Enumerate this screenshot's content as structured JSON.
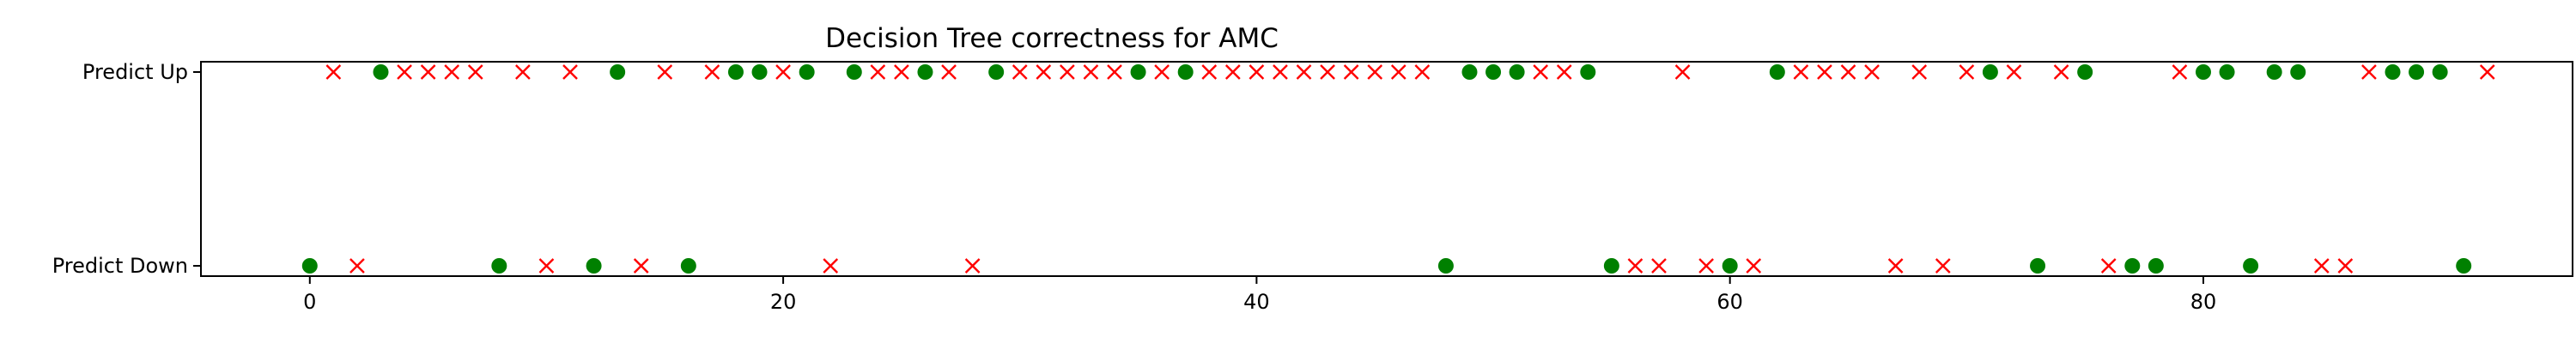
{
  "chart_data": {
    "type": "scatter",
    "title": "Decision Tree correctness for AMC",
    "xlabel": "",
    "ylabel": "",
    "xlim": [
      -4.6,
      95.6
    ],
    "x_ticks": [
      0,
      20,
      40,
      60,
      80
    ],
    "y_categories": [
      "Predict Down",
      "Predict Up"
    ],
    "grid": false,
    "legend": "none",
    "colors": {
      "correct": "#008000",
      "incorrect": "#ff0000"
    },
    "series": [
      {
        "marker": "circle",
        "color": "correct",
        "points": [
          [
            0,
            0
          ],
          [
            3,
            1
          ],
          [
            8,
            0
          ],
          [
            12,
            0
          ],
          [
            13,
            1
          ],
          [
            16,
            0
          ],
          [
            18,
            1
          ],
          [
            19,
            1
          ],
          [
            21,
            1
          ],
          [
            23,
            1
          ],
          [
            26,
            1
          ],
          [
            29,
            1
          ],
          [
            35,
            1
          ],
          [
            37,
            1
          ],
          [
            48,
            0
          ],
          [
            49,
            1
          ],
          [
            50,
            1
          ],
          [
            51,
            1
          ],
          [
            54,
            1
          ],
          [
            55,
            0
          ],
          [
            60,
            0
          ],
          [
            62,
            1
          ],
          [
            71,
            1
          ],
          [
            73,
            0
          ],
          [
            75,
            1
          ],
          [
            77,
            0
          ],
          [
            78,
            0
          ],
          [
            80,
            1
          ],
          [
            81,
            1
          ],
          [
            82,
            0
          ],
          [
            83,
            1
          ],
          [
            84,
            1
          ],
          [
            88,
            1
          ],
          [
            89,
            1
          ],
          [
            90,
            1
          ],
          [
            91,
            0
          ]
        ]
      },
      {
        "marker": "x",
        "color": "incorrect",
        "points": [
          [
            1,
            1
          ],
          [
            2,
            0
          ],
          [
            4,
            1
          ],
          [
            5,
            1
          ],
          [
            6,
            1
          ],
          [
            7,
            1
          ],
          [
            9,
            1
          ],
          [
            10,
            0
          ],
          [
            11,
            1
          ],
          [
            14,
            0
          ],
          [
            15,
            1
          ],
          [
            17,
            1
          ],
          [
            20,
            1
          ],
          [
            22,
            0
          ],
          [
            24,
            1
          ],
          [
            25,
            1
          ],
          [
            27,
            1
          ],
          [
            28,
            0
          ],
          [
            30,
            1
          ],
          [
            31,
            1
          ],
          [
            32,
            1
          ],
          [
            33,
            1
          ],
          [
            34,
            1
          ],
          [
            36,
            1
          ],
          [
            38,
            1
          ],
          [
            39,
            1
          ],
          [
            40,
            1
          ],
          [
            41,
            1
          ],
          [
            42,
            1
          ],
          [
            43,
            1
          ],
          [
            44,
            1
          ],
          [
            45,
            1
          ],
          [
            46,
            1
          ],
          [
            47,
            1
          ],
          [
            52,
            1
          ],
          [
            53,
            1
          ],
          [
            56,
            0
          ],
          [
            57,
            0
          ],
          [
            58,
            1
          ],
          [
            59,
            0
          ],
          [
            61,
            0
          ],
          [
            63,
            1
          ],
          [
            64,
            1
          ],
          [
            65,
            1
          ],
          [
            66,
            1
          ],
          [
            67,
            0
          ],
          [
            68,
            1
          ],
          [
            69,
            0
          ],
          [
            70,
            1
          ],
          [
            72,
            1
          ],
          [
            74,
            1
          ],
          [
            76,
            0
          ],
          [
            79,
            1
          ],
          [
            85,
            0
          ],
          [
            86,
            0
          ],
          [
            87,
            1
          ],
          [
            92,
            1
          ]
        ]
      }
    ]
  }
}
